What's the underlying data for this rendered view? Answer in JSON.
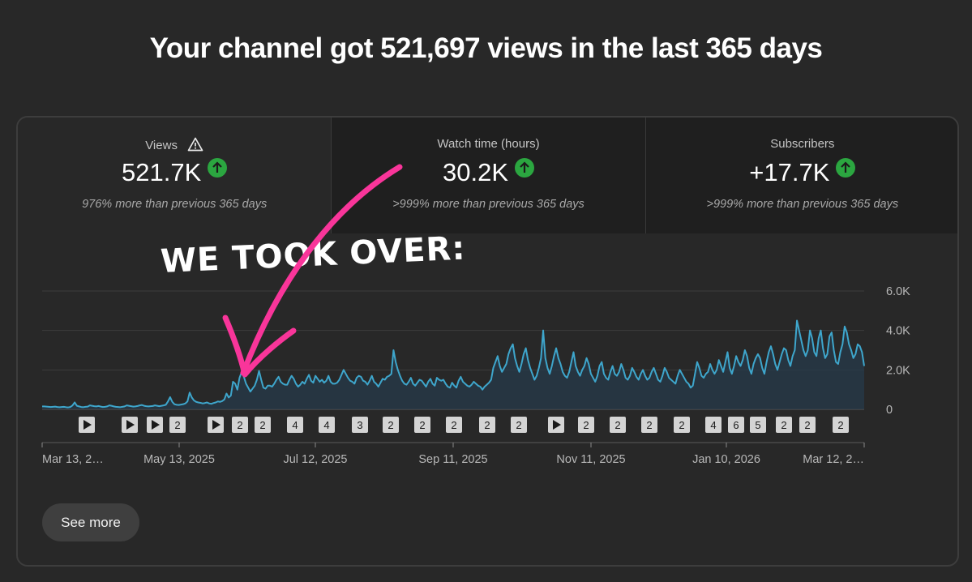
{
  "headline": "Your channel got 521,697 views in the last 365 days",
  "metrics": [
    {
      "label": "Views",
      "value": "521.7K",
      "delta": "976% more than previous 365 days",
      "warning": true
    },
    {
      "label": "Watch time (hours)",
      "value": "30.2K",
      "delta": ">999% more than previous 365 days"
    },
    {
      "label": "Subscribers",
      "value": "+17.7K",
      "delta": ">999% more than previous 365 days"
    }
  ],
  "annotation": "WE TOOK OVER:",
  "see_more": "See more",
  "colors": {
    "line": "#3ea6cc",
    "up_badge": "#2ba640",
    "annotation": "#f9359a"
  },
  "icons": {
    "warning": "warning-triangle-icon",
    "trend": "arrow-up-icon",
    "video": "play-icon"
  },
  "chart_data": {
    "type": "area",
    "series": [
      {
        "values": [
          150,
          150,
          140,
          130,
          120,
          130,
          140,
          120,
          110,
          120,
          130,
          110,
          100,
          120,
          200,
          350,
          180,
          150,
          120,
          110,
          130,
          140,
          200,
          180,
          160,
          150,
          170,
          140,
          120,
          130,
          150,
          200,
          180,
          150,
          130,
          120,
          110,
          130,
          150,
          200,
          180,
          160,
          140,
          150,
          170,
          200,
          220,
          180,
          160,
          150,
          160,
          170,
          200,
          180,
          160,
          180,
          200,
          230,
          400,
          620,
          380,
          260,
          230,
          220,
          240,
          260,
          300,
          400,
          850,
          600,
          450,
          380,
          350,
          330,
          300,
          320,
          350,
          300,
          280,
          320,
          350,
          400,
          380,
          420,
          500,
          800,
          600,
          700,
          1400,
          1300,
          1000,
          1600,
          1900,
          1650,
          1300,
          1100,
          900,
          1050,
          1200,
          1500,
          1950,
          1500,
          1100,
          1050,
          1200,
          1200,
          1150,
          1300,
          1500,
          1650,
          1400,
          1300,
          1250,
          1250,
          1500,
          1700,
          1550,
          1300,
          1150,
          1250,
          1400,
          1300,
          1550,
          1750,
          1450,
          1350,
          1700,
          1550,
          1400,
          1500,
          1350,
          1450,
          1700,
          1400,
          1300,
          1300,
          1350,
          1500,
          1750,
          2000,
          1800,
          1600,
          1450,
          1400,
          1300,
          1600,
          1700,
          1650,
          1450,
          1400,
          1250,
          1450,
          1700,
          1400,
          1300,
          1150,
          1350,
          1550,
          1500,
          1650,
          1700,
          1800,
          3000,
          2400,
          2000,
          1700,
          1450,
          1300,
          1250,
          1400,
          1600,
          1300,
          1200,
          1350,
          1500,
          1450,
          1300,
          1150,
          1400,
          1550,
          1300,
          1200,
          1600,
          1500,
          1450,
          1500,
          1300,
          1150,
          1100,
          1350,
          1200,
          1100,
          1450,
          1650,
          1400,
          1300,
          1200,
          1150,
          1250,
          1400,
          1300,
          1200,
          1150,
          1000,
          1150,
          1250,
          1350,
          1500,
          2100,
          2400,
          2700,
          2200,
          1900,
          2100,
          2300,
          2800,
          3100,
          3300,
          2600,
          2200,
          1900,
          2300,
          2800,
          3100,
          2500,
          2100,
          1800,
          1500,
          1700,
          2100,
          2600,
          4000,
          2600,
          2100,
          1800,
          2200,
          2700,
          3100,
          2600,
          2300,
          1900,
          1700,
          1600,
          1900,
          2400,
          2900,
          2200,
          1900,
          1700,
          2000,
          2200,
          2600,
          2300,
          1800,
          1600,
          1400,
          1700,
          2200,
          2400,
          1800,
          1600,
          1500,
          1900,
          2200,
          1800,
          1700,
          1900,
          2300,
          2000,
          1600,
          1500,
          1700,
          2100,
          1900,
          1650,
          1500,
          1800,
          2000,
          1700,
          1500,
          1600,
          1900,
          2100,
          1800,
          1500,
          1400,
          1700,
          2100,
          1900,
          1600,
          1500,
          1400,
          1300,
          1700,
          2000,
          1800,
          1600,
          1400,
          1300,
          1100,
          1200,
          1800,
          2400,
          2100,
          1700,
          1600,
          1800,
          1900,
          2300,
          2000,
          1800,
          2000,
          2500,
          2200,
          1900,
          2400,
          2900,
          2100,
          1800,
          2200,
          2700,
          2400,
          2200,
          2500,
          3000,
          2700,
          2100,
          1800,
          2300,
          2600,
          2800,
          2600,
          2100,
          1800,
          2400,
          2900,
          3200,
          2800,
          2300,
          2000,
          2400,
          2800,
          3100,
          3000,
          2500,
          2200,
          2700,
          3000,
          4500,
          4000,
          3500,
          3000,
          2700,
          3000,
          4000,
          3600,
          2900,
          2700,
          3600,
          4000,
          3100,
          2600,
          2800,
          3700,
          3900,
          3000,
          2400,
          2300,
          2900,
          3300,
          4200,
          3900,
          3300,
          3000,
          2600,
          2800,
          3300,
          3200,
          2900,
          2200
        ]
      }
    ],
    "y_ticks": [
      "6.0K",
      "4.0K",
      "2.0K",
      "0"
    ],
    "ylim": [
      0,
      6000
    ],
    "x_ticks": [
      "Mar 13, 2…",
      "May 13, 2025",
      "Jul 12, 2025",
      "Sep 11, 2025",
      "Nov 11, 2025",
      "Jan 10, 2026",
      "Mar 12, 2…"
    ],
    "markers": [
      {
        "kind": "video"
      },
      {
        "kind": "video"
      },
      {
        "kind": "video"
      },
      {
        "kind": "count",
        "label": "2"
      },
      {
        "kind": "video"
      },
      {
        "kind": "count",
        "label": "2"
      },
      {
        "kind": "count",
        "label": "2"
      },
      {
        "kind": "count",
        "label": "4"
      },
      {
        "kind": "count",
        "label": "4"
      },
      {
        "kind": "count",
        "label": "3"
      },
      {
        "kind": "count",
        "label": "2"
      },
      {
        "kind": "count",
        "label": "2"
      },
      {
        "kind": "count",
        "label": "2"
      },
      {
        "kind": "count",
        "label": "2"
      },
      {
        "kind": "count",
        "label": "2"
      },
      {
        "kind": "video"
      },
      {
        "kind": "count",
        "label": "2"
      },
      {
        "kind": "count",
        "label": "2"
      },
      {
        "kind": "count",
        "label": "2"
      },
      {
        "kind": "count",
        "label": "2"
      },
      {
        "kind": "count",
        "label": "4"
      },
      {
        "kind": "count",
        "label": "6"
      },
      {
        "kind": "count",
        "label": "5"
      },
      {
        "kind": "count",
        "label": "2"
      },
      {
        "kind": "count",
        "label": "2"
      },
      {
        "kind": "count",
        "label": "2"
      }
    ],
    "grid": true
  }
}
